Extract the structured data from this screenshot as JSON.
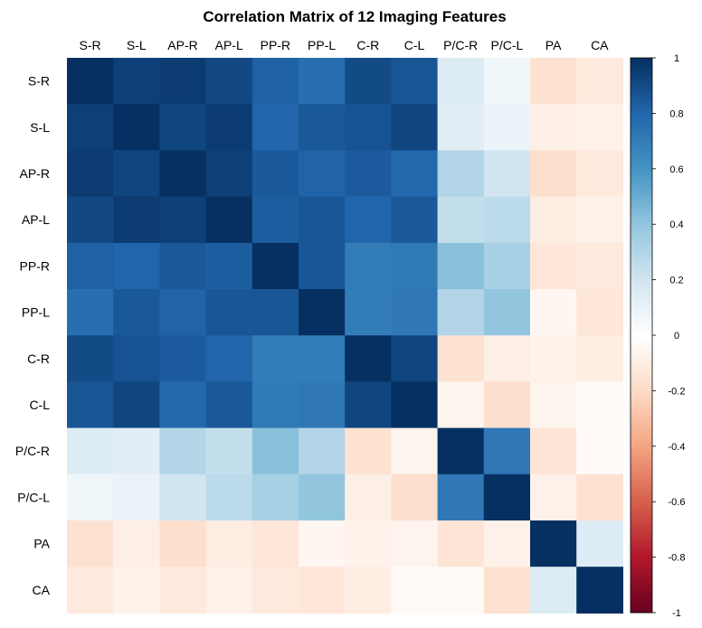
{
  "chart_data": {
    "type": "heatmap",
    "title": "Correlation Matrix of 12 Imaging Features",
    "rows": [
      "S-R",
      "S-L",
      "AP-R",
      "AP-L",
      "PP-R",
      "PP-L",
      "C-R",
      "C-L",
      "P/C-R",
      "P/C-L",
      "PA",
      "CA"
    ],
    "columns": [
      "S-R",
      "S-L",
      "AP-R",
      "AP-L",
      "PP-R",
      "PP-L",
      "C-R",
      "C-L",
      "P/C-R",
      "P/C-L",
      "PA",
      "CA"
    ],
    "values": [
      [
        1.0,
        0.94,
        0.96,
        0.91,
        0.82,
        0.76,
        0.9,
        0.86,
        0.15,
        0.07,
        -0.16,
        -0.12
      ],
      [
        0.94,
        1.0,
        0.92,
        0.96,
        0.8,
        0.85,
        0.87,
        0.92,
        0.13,
        0.09,
        -0.09,
        -0.07
      ],
      [
        0.96,
        0.92,
        1.0,
        0.94,
        0.85,
        0.81,
        0.84,
        0.79,
        0.3,
        0.2,
        -0.18,
        -0.12
      ],
      [
        0.91,
        0.96,
        0.94,
        1.0,
        0.83,
        0.86,
        0.8,
        0.85,
        0.24,
        0.27,
        -0.1,
        -0.08
      ],
      [
        0.82,
        0.8,
        0.85,
        0.83,
        1.0,
        0.86,
        0.7,
        0.71,
        0.42,
        0.33,
        -0.14,
        -0.12
      ],
      [
        0.76,
        0.85,
        0.81,
        0.86,
        0.86,
        1.0,
        0.7,
        0.72,
        0.3,
        0.4,
        -0.05,
        -0.14
      ],
      [
        0.9,
        0.87,
        0.84,
        0.8,
        0.7,
        0.7,
        1.0,
        0.92,
        -0.16,
        -0.09,
        -0.07,
        -0.1
      ],
      [
        0.86,
        0.92,
        0.79,
        0.85,
        0.71,
        0.72,
        0.92,
        1.0,
        -0.06,
        -0.18,
        -0.06,
        -0.03
      ],
      [
        0.15,
        0.13,
        0.3,
        0.24,
        0.42,
        0.3,
        -0.16,
        -0.06,
        1.0,
        0.72,
        -0.15,
        -0.03
      ],
      [
        0.07,
        0.09,
        0.2,
        0.27,
        0.33,
        0.4,
        -0.09,
        -0.18,
        0.72,
        1.0,
        -0.08,
        -0.16
      ],
      [
        -0.16,
        -0.09,
        -0.18,
        -0.1,
        -0.14,
        -0.05,
        -0.07,
        -0.06,
        -0.15,
        -0.08,
        1.0,
        0.15
      ],
      [
        -0.12,
        -0.07,
        -0.12,
        -0.08,
        -0.12,
        -0.14,
        -0.1,
        -0.03,
        -0.03,
        -0.16,
        0.15,
        1.0
      ]
    ],
    "colorbar": {
      "range": [
        -1,
        1
      ],
      "ticks": [
        "1",
        "0.8",
        "0.6",
        "0.4",
        "0.2",
        "0",
        "-0.2",
        "-0.4",
        "-0.6",
        "-0.8",
        "-1"
      ]
    },
    "colors": {
      "stops": [
        [
          -1.0,
          "#67001F"
        ],
        [
          -0.8,
          "#B2182B"
        ],
        [
          -0.6,
          "#D6604D"
        ],
        [
          -0.4,
          "#F4A582"
        ],
        [
          -0.2,
          "#FDDBC7"
        ],
        [
          0.0,
          "#FFFFFF"
        ],
        [
          0.2,
          "#D1E5F0"
        ],
        [
          0.4,
          "#92C5DE"
        ],
        [
          0.6,
          "#4393C3"
        ],
        [
          0.8,
          "#2166AC"
        ],
        [
          1.0,
          "#053061"
        ]
      ]
    }
  }
}
